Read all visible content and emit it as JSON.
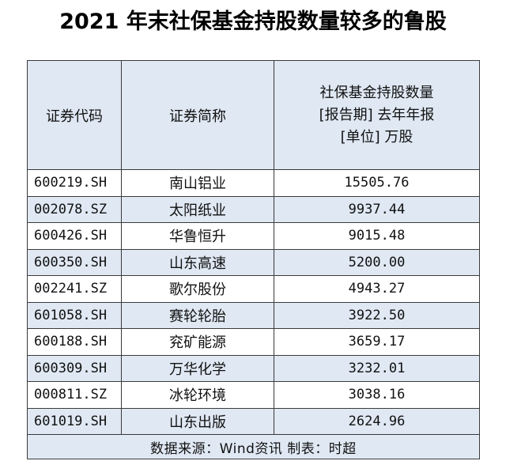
{
  "title": "2021 年末社保基金持股数量较多的鲁股",
  "headers": {
    "code": "证券代码",
    "name": "证券简称",
    "holding_line1": "社保基金持股数量",
    "holding_line2": "[报告期] 去年年报",
    "holding_line3": "[单位] 万股"
  },
  "rows": [
    {
      "code": "600219.SH",
      "name": "南山铝业",
      "value": "15505.76"
    },
    {
      "code": "002078.SZ",
      "name": "太阳纸业",
      "value": "9937.44"
    },
    {
      "code": "600426.SH",
      "name": "华鲁恒升",
      "value": "9015.48"
    },
    {
      "code": "600350.SH",
      "name": "山东高速",
      "value": "5200.00"
    },
    {
      "code": "002241.SZ",
      "name": "歌尔股份",
      "value": "4943.27"
    },
    {
      "code": "601058.SH",
      "name": "赛轮轮胎",
      "value": "3922.50"
    },
    {
      "code": "600188.SH",
      "name": "兖矿能源",
      "value": "3659.17"
    },
    {
      "code": "600309.SH",
      "name": "万华化学",
      "value": "3232.01"
    },
    {
      "code": "000811.SZ",
      "name": "冰轮环境",
      "value": "3038.16"
    },
    {
      "code": "601019.SH",
      "name": "山东出版",
      "value": "2624.96"
    }
  ],
  "footer": "数据来源：Wind资讯 制表：时超",
  "colors": {
    "stripe": "#dfe8f3",
    "border": "#3a3a3a"
  }
}
